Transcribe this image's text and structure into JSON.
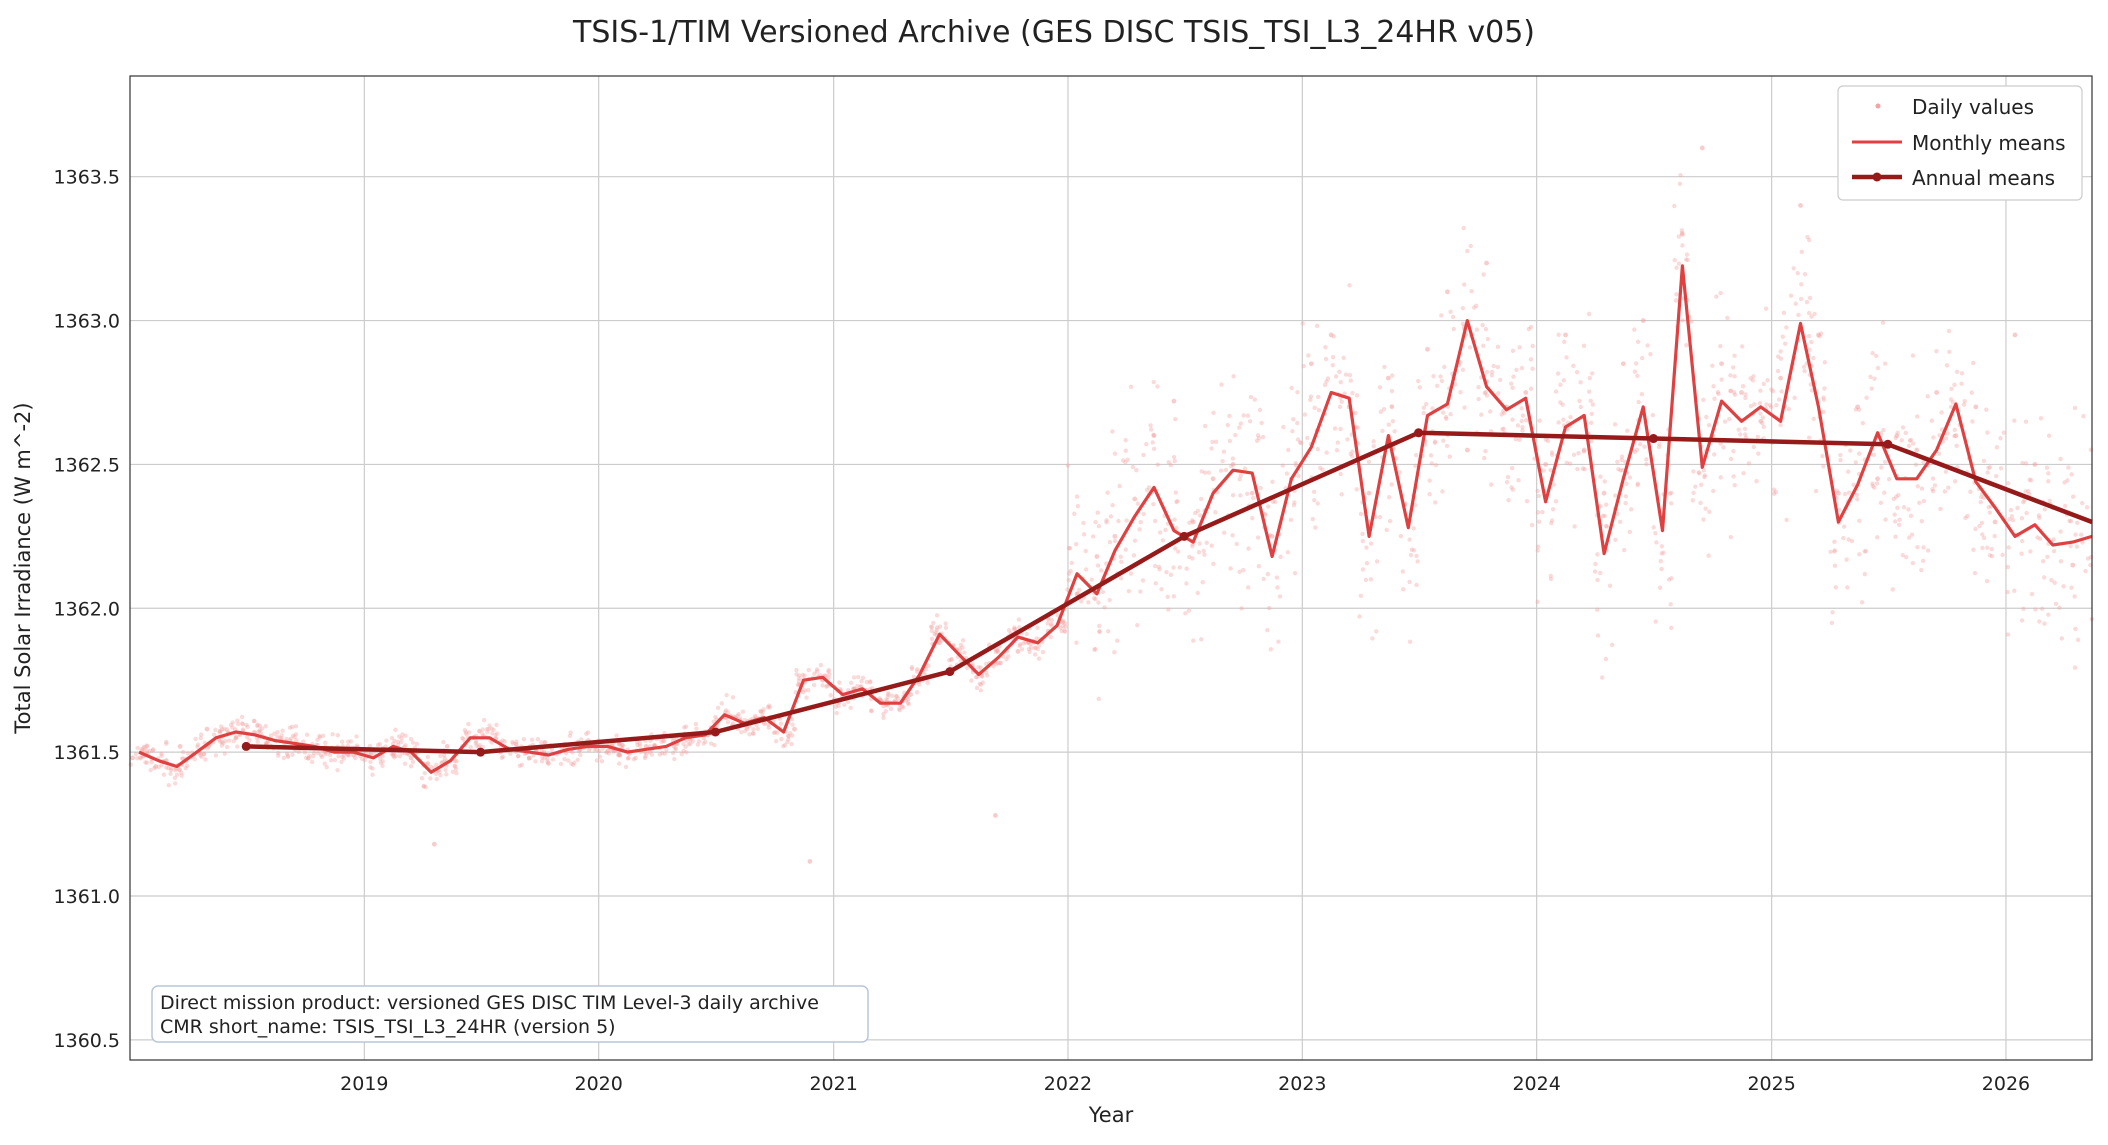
{
  "chart_data": {
    "type": "line",
    "title": "TSIS-1/TIM Versioned Archive (GES DISC TSIS_TSI_L3_24HR v05)",
    "xlabel": "Year",
    "ylabel": "Total Solar Irradiance (W m^-2)",
    "x_scale": "date",
    "xlim": [
      "2018-01-01",
      "2026-05-15"
    ],
    "ylim": [
      1360.43,
      1363.85
    ],
    "x_ticks": [
      "2019",
      "2020",
      "2021",
      "2022",
      "2023",
      "2024",
      "2025",
      "2026"
    ],
    "y_ticks": [
      "1360.5",
      "1361.0",
      "1361.5",
      "1362.0",
      "1362.5",
      "1363.0",
      "1363.5"
    ],
    "grid": true,
    "legend_position": "top-right",
    "colors": {
      "daily": "#f4a3a3",
      "monthly": "#e04040",
      "annual": "#961a1a",
      "grid": "#cccccc",
      "axes": "#333333"
    },
    "annotation": {
      "line1": "Direct mission product: versioned GES DISC TIM Level-3 daily archive",
      "line2": "CMR short_name: TSIS_TSI_L3_24HR (version 5)"
    },
    "series": [
      {
        "name": "Daily values",
        "type": "scatter",
        "jitter_note_free": true,
        "x": [
          "2018-01-05",
          "2018-02-10",
          "2018-03-20",
          "2018-05-01",
          "2018-06-15",
          "2018-08-01",
          "2018-09-15",
          "2018-11-01",
          "2018-12-15",
          "2019-02-01",
          "2019-03-15",
          "2019-04-20",
          "2019-05-10",
          "2019-06-20",
          "2019-08-01",
          "2019-09-15",
          "2019-11-01",
          "2019-12-15",
          "2020-02-01",
          "2020-03-15",
          "2020-05-01",
          "2020-06-15",
          "2020-08-01",
          "2020-09-15",
          "2020-11-01",
          "2020-11-25",
          "2020-12-15",
          "2021-02-01",
          "2021-03-15",
          "2021-05-01",
          "2021-06-15",
          "2021-08-01",
          "2021-09-10",
          "2021-10-15",
          "2021-12-01",
          "2022-01-15",
          "2022-02-15",
          "2022-03-15",
          "2022-04-15",
          "2022-05-15",
          "2022-06-15",
          "2022-07-15",
          "2022-08-15",
          "2022-09-15",
          "2022-10-15",
          "2022-11-15",
          "2022-12-15",
          "2023-01-15",
          "2023-02-15",
          "2023-03-15",
          "2023-04-15",
          "2023-05-15",
          "2023-06-15",
          "2023-07-15",
          "2023-08-15",
          "2023-09-15",
          "2023-10-15",
          "2023-11-15",
          "2023-12-15",
          "2024-01-15",
          "2024-02-15",
          "2024-03-15",
          "2024-04-15",
          "2024-05-15",
          "2024-06-15",
          "2024-07-15",
          "2024-08-15",
          "2024-09-15",
          "2024-10-01",
          "2024-10-15",
          "2024-11-15",
          "2024-12-15",
          "2025-01-15",
          "2025-02-15",
          "2025-03-15",
          "2025-04-15",
          "2025-05-15",
          "2025-06-15",
          "2025-07-15",
          "2025-08-15",
          "2025-09-15",
          "2025-10-15",
          "2025-11-15",
          "2025-12-15",
          "2026-01-15",
          "2026-02-15",
          "2026-03-15",
          "2026-04-15"
        ],
        "y": [
          1361.48,
          1361.45,
          1361.52,
          1361.58,
          1361.55,
          1361.53,
          1361.51,
          1361.5,
          1361.49,
          1361.51,
          1361.48,
          1361.18,
          1361.52,
          1361.55,
          1361.5,
          1361.48,
          1361.5,
          1361.52,
          1361.49,
          1361.52,
          1361.53,
          1361.57,
          1361.62,
          1361.6,
          1361.58,
          1361.12,
          1361.75,
          1361.72,
          1361.68,
          1361.7,
          1361.88,
          1361.82,
          1361.28,
          1361.85,
          1361.92,
          1362.05,
          1362.18,
          1362.25,
          1362.38,
          1362.6,
          1362.72,
          1362.3,
          1362.45,
          1362.5,
          1362.4,
          1362.25,
          1362.45,
          1362.85,
          1362.95,
          1362.7,
          1362.4,
          1362.8,
          1362.3,
          1362.9,
          1363.1,
          1362.55,
          1363.2,
          1362.7,
          1362.75,
          1362.5,
          1362.95,
          1362.55,
          1362.4,
          1362.85,
          1363.0,
          1362.3,
          1363.3,
          1363.6,
          1362.6,
          1362.85,
          1362.75,
          1362.65,
          1362.8,
          1363.4,
          1362.95,
          1362.4,
          1362.7,
          1362.45,
          1362.6,
          1362.55,
          1362.75,
          1362.6,
          1362.7,
          1362.3,
          1362.95,
          1362.5,
          1362.35,
          1362.15
        ]
      },
      {
        "name": "Monthly means",
        "type": "line",
        "x": [
          "2018-01-15",
          "2018-02-15",
          "2018-03-15",
          "2018-04-15",
          "2018-05-15",
          "2018-06-15",
          "2018-07-15",
          "2018-08-15",
          "2018-09-15",
          "2018-10-15",
          "2018-11-15",
          "2018-12-15",
          "2019-01-15",
          "2019-02-15",
          "2019-03-15",
          "2019-04-15",
          "2019-05-15",
          "2019-06-15",
          "2019-07-15",
          "2019-08-15",
          "2019-09-15",
          "2019-10-15",
          "2019-11-15",
          "2019-12-15",
          "2020-01-15",
          "2020-02-15",
          "2020-03-15",
          "2020-04-15",
          "2020-05-15",
          "2020-06-15",
          "2020-07-15",
          "2020-08-15",
          "2020-09-15",
          "2020-10-15",
          "2020-11-15",
          "2020-12-15",
          "2021-01-15",
          "2021-02-15",
          "2021-03-15",
          "2021-04-15",
          "2021-05-15",
          "2021-06-15",
          "2021-07-15",
          "2021-08-15",
          "2021-09-15",
          "2021-10-15",
          "2021-11-15",
          "2021-12-15",
          "2022-01-15",
          "2022-02-15",
          "2022-03-15",
          "2022-04-15",
          "2022-05-15",
          "2022-06-15",
          "2022-07-15",
          "2022-08-15",
          "2022-09-15",
          "2022-10-15",
          "2022-11-15",
          "2022-12-15",
          "2023-01-15",
          "2023-02-15",
          "2023-03-15",
          "2023-04-15",
          "2023-05-15",
          "2023-06-15",
          "2023-07-15",
          "2023-08-15",
          "2023-09-15",
          "2023-10-15",
          "2023-11-15",
          "2023-12-15",
          "2024-01-15",
          "2024-02-15",
          "2024-03-15",
          "2024-04-15",
          "2024-05-15",
          "2024-06-15",
          "2024-07-15",
          "2024-08-15",
          "2024-09-15",
          "2024-10-15",
          "2024-11-15",
          "2024-12-15",
          "2025-01-15",
          "2025-02-15",
          "2025-03-15",
          "2025-04-15",
          "2025-05-15",
          "2025-06-15",
          "2025-07-15",
          "2025-08-15",
          "2025-09-15",
          "2025-10-15",
          "2025-11-15",
          "2025-12-15",
          "2026-01-15",
          "2026-02-15",
          "2026-03-15",
          "2026-04-15",
          "2026-05-15"
        ],
        "y": [
          1361.5,
          1361.47,
          1361.45,
          1361.5,
          1361.55,
          1361.57,
          1361.56,
          1361.54,
          1361.53,
          1361.52,
          1361.5,
          1361.5,
          1361.48,
          1361.52,
          1361.5,
          1361.43,
          1361.47,
          1361.55,
          1361.55,
          1361.51,
          1361.5,
          1361.49,
          1361.51,
          1361.52,
          1361.52,
          1361.5,
          1361.51,
          1361.52,
          1361.55,
          1361.56,
          1361.63,
          1361.6,
          1361.62,
          1361.57,
          1361.75,
          1361.76,
          1361.7,
          1361.72,
          1361.67,
          1361.67,
          1361.77,
          1361.91,
          1361.84,
          1361.77,
          1361.83,
          1361.9,
          1361.88,
          1361.94,
          1362.12,
          1362.05,
          1362.2,
          1362.32,
          1362.42,
          1362.27,
          1362.23,
          1362.4,
          1362.48,
          1362.47,
          1362.18,
          1362.45,
          1362.56,
          1362.75,
          1362.73,
          1362.25,
          1362.6,
          1362.28,
          1362.67,
          1362.71,
          1363.0,
          1362.77,
          1362.69,
          1362.73,
          1362.37,
          1362.63,
          1362.67,
          1362.19,
          1362.45,
          1362.7,
          1362.27,
          1363.19,
          1362.49,
          1362.72,
          1362.65,
          1362.7,
          1362.65,
          1362.99,
          1362.7,
          1362.3,
          1362.43,
          1362.61,
          1362.45,
          1362.45,
          1362.55,
          1362.71,
          1362.44,
          1362.35,
          1362.25,
          1362.29,
          1362.22,
          1362.23,
          1362.25
        ]
      },
      {
        "name": "Annual means",
        "type": "line",
        "x": [
          "2018-07-01",
          "2019-07-01",
          "2020-07-01",
          "2021-07-01",
          "2022-07-01",
          "2023-07-01",
          "2024-07-01",
          "2025-07-01",
          "2026-05-15"
        ],
        "y": [
          1361.52,
          1361.5,
          1361.57,
          1361.78,
          1362.25,
          1362.61,
          1362.59,
          1362.57,
          1362.3
        ],
        "markers_on_first": 8
      }
    ]
  }
}
